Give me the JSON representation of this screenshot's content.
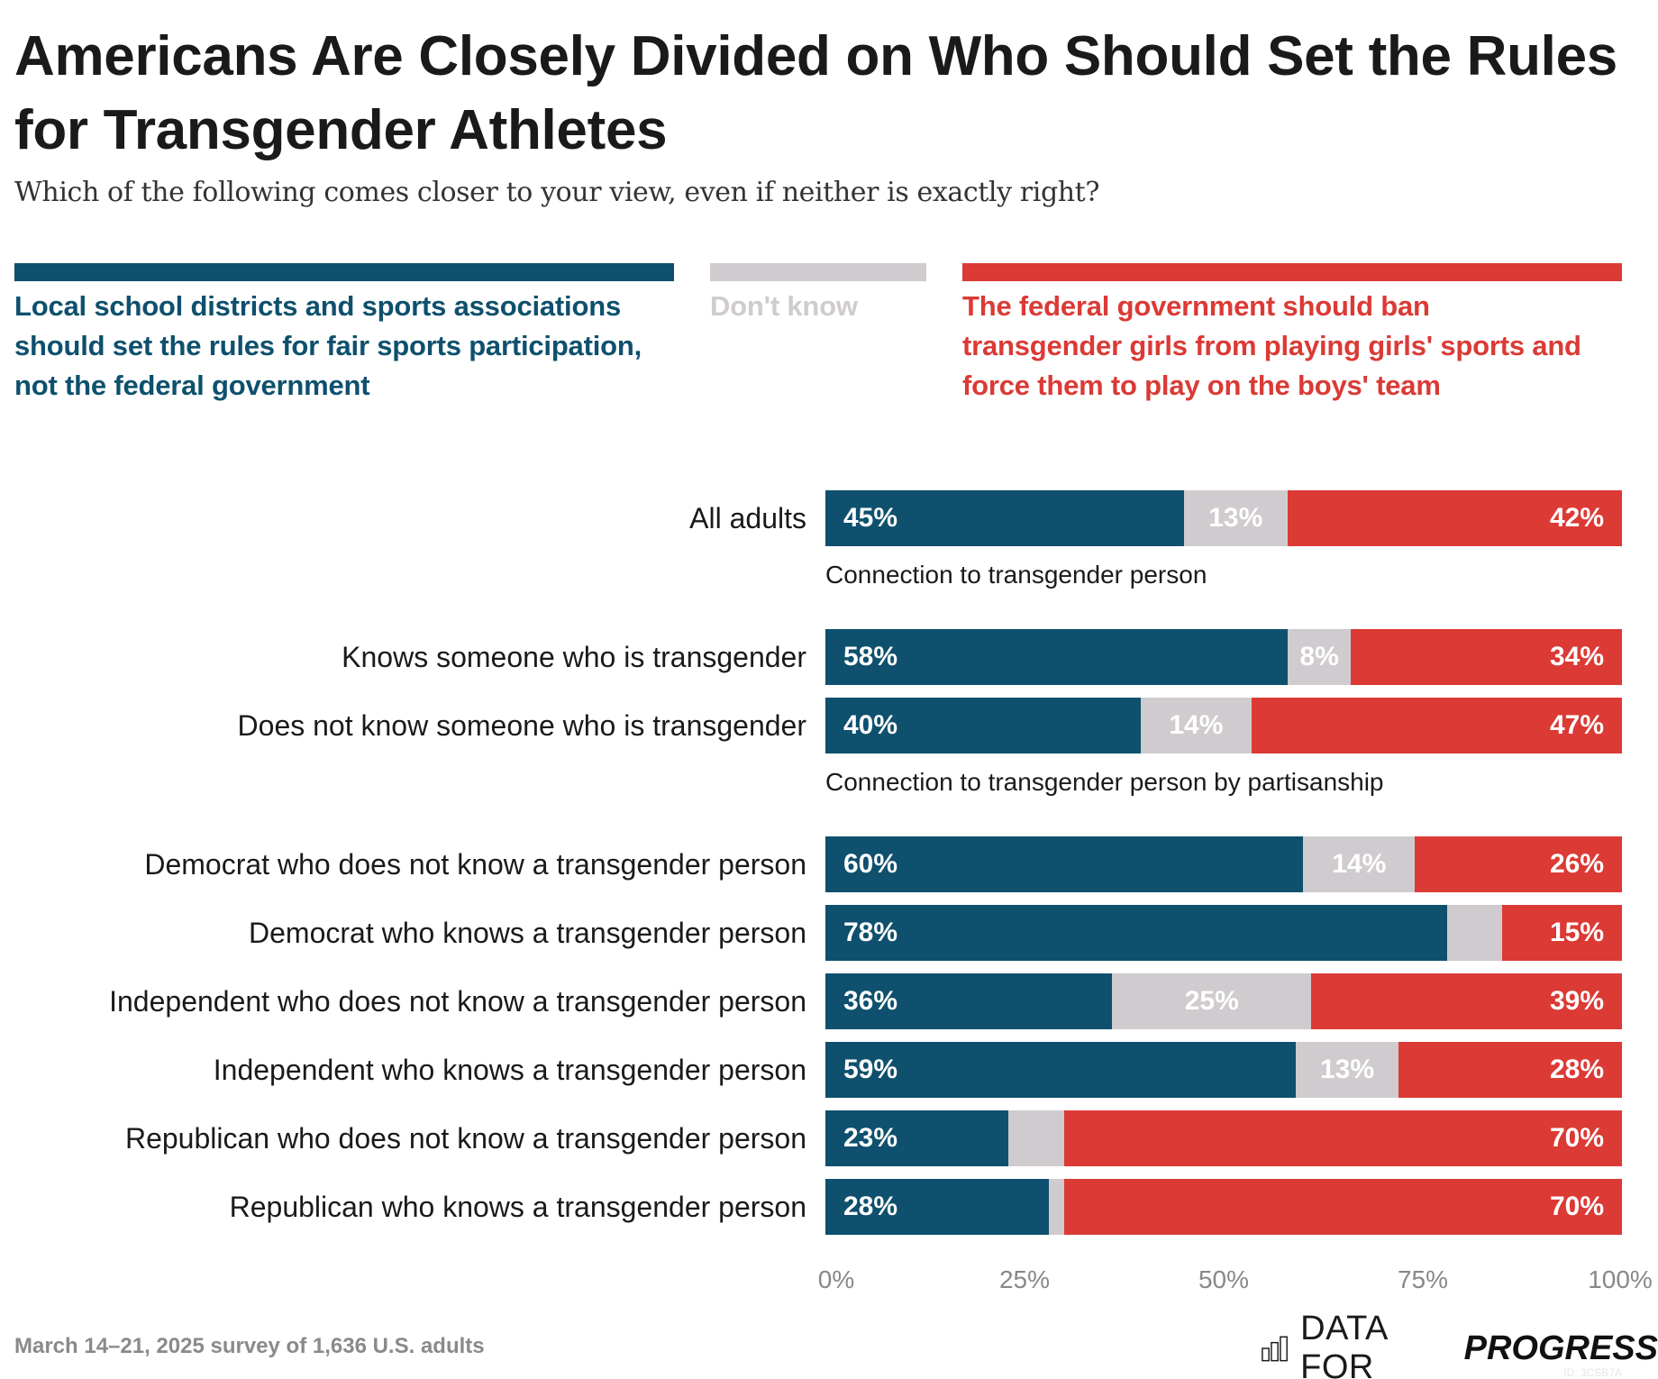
{
  "colors": {
    "local": "#0e506d",
    "dont_know": "#cfcbcf",
    "federal": "#db3a35",
    "text": "#1a1a1a",
    "muted": "#8a8a8a"
  },
  "chart_data": {
    "type": "bar",
    "orientation": "horizontal",
    "stacked": true,
    "title": "Americans Are Closely Divided on Who Should Set the Rules for Transgender Athletes",
    "subtitle": "Which of the following comes closer to your view, even if neither is exactly right?",
    "xlim": [
      0,
      100
    ],
    "x_ticks": [
      "0%",
      "25%",
      "50%",
      "75%",
      "100%"
    ],
    "legend_position": "top",
    "legend": [
      {
        "key": "local",
        "label": "Local school districts and sports associations should set the rules for fair sports participation, not the federal government"
      },
      {
        "key": "dont_know",
        "label": "Don't know"
      },
      {
        "key": "federal",
        "label": "The federal government should ban transgender girls from playing girls' sports and force them to play on the boys' team"
      }
    ],
    "groups": [
      {
        "heading": "",
        "rows": [
          {
            "label": "All adults",
            "local": 45,
            "dont_know": 13,
            "federal": 42,
            "labels": [
              "45%",
              "13%",
              "42%"
            ]
          }
        ]
      },
      {
        "heading": "Connection to transgender person",
        "rows": [
          {
            "label": "Knows someone who is transgender",
            "local": 58,
            "dont_know": 8,
            "federal": 34,
            "labels": [
              "58%",
              "8%",
              "34%"
            ]
          },
          {
            "label": "Does not know someone who is transgender",
            "local": 40,
            "dont_know": 14,
            "federal": 47,
            "labels": [
              "40%",
              "14%",
              "47%"
            ]
          }
        ]
      },
      {
        "heading": "Connection to transgender person by partisanship",
        "rows": [
          {
            "label": "Democrat who does not know a transgender person",
            "local": 60,
            "dont_know": 14,
            "federal": 26,
            "labels": [
              "60%",
              "14%",
              "26%"
            ]
          },
          {
            "label": "Democrat who knows a transgender person",
            "local": 78,
            "dont_know": 7,
            "federal": 15,
            "labels": [
              "78%",
              "",
              "15%"
            ]
          },
          {
            "label": "Independent who does not know a transgender person",
            "local": 36,
            "dont_know": 25,
            "federal": 39,
            "labels": [
              "36%",
              "25%",
              "39%"
            ]
          },
          {
            "label": "Independent who knows a transgender person",
            "local": 59,
            "dont_know": 13,
            "federal": 28,
            "labels": [
              "59%",
              "13%",
              "28%"
            ]
          },
          {
            "label": "Republican who does not know a transgender person",
            "local": 23,
            "dont_know": 7,
            "federal": 70,
            "labels": [
              "23%",
              "",
              "70%"
            ]
          },
          {
            "label": "Republican who knows a transgender person",
            "local": 28,
            "dont_know": 2,
            "federal": 70,
            "labels": [
              "28%",
              "",
              "70%"
            ]
          }
        ]
      }
    ]
  },
  "footer": {
    "note": "March 14–21, 2025 survey of 1,636 U.S. adults",
    "logo_light": "DATA FOR",
    "logo_bold": "PROGRESS",
    "logo_icon": "bar-chart-icon",
    "chart_id": "ID: 3CSB7A"
  }
}
